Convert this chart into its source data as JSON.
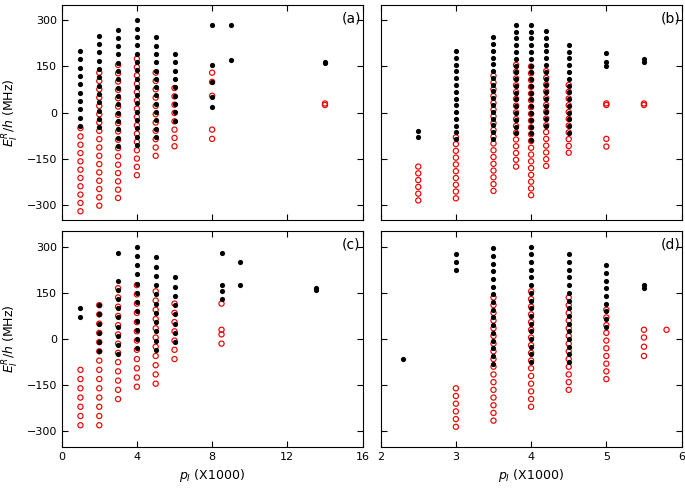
{
  "panels": {
    "a": {
      "label": "(a)",
      "xlim": [
        0,
        16
      ],
      "xticks": [
        0,
        4,
        8,
        12,
        16
      ],
      "ylim": [
        -350,
        350
      ],
      "yticks": [
        -300,
        -150,
        0,
        150,
        300
      ]
    },
    "b": {
      "label": "(b)",
      "xlim": [
        2,
        6
      ],
      "xticks": [
        2,
        3,
        4,
        5,
        6
      ],
      "ylim": [
        -350,
        350
      ],
      "yticks": [
        -300,
        -150,
        0,
        150,
        300
      ]
    },
    "c": {
      "label": "(c)",
      "xlim": [
        0,
        16
      ],
      "xticks": [
        0,
        4,
        8,
        12,
        16
      ],
      "ylim": [
        -350,
        350
      ],
      "yticks": [
        -300,
        -150,
        0,
        150,
        300
      ]
    },
    "d": {
      "label": "(d)",
      "xlim": [
        2,
        6
      ],
      "xticks": [
        2,
        3,
        4,
        5,
        6
      ],
      "ylim": [
        -350,
        350
      ],
      "yticks": [
        -300,
        -150,
        0,
        150,
        300
      ]
    }
  },
  "black_color": "#000000",
  "red_color": "#ee0000",
  "dot_size": 14,
  "circle_size": 14,
  "lw": 0.85,
  "ylabel_left": "$E_I^R/h$ (MHz)",
  "xlabel_bottom": "$p_I$ (X1000)"
}
